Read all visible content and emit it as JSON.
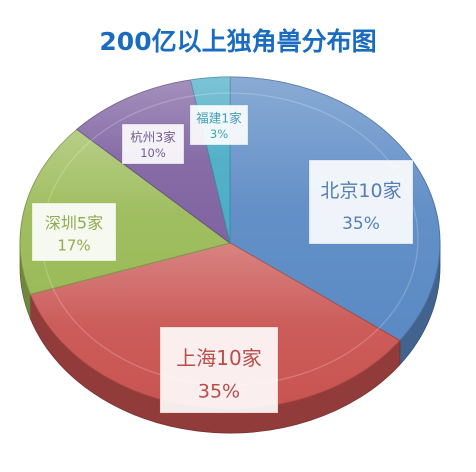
{
  "chart_data": {
    "type": "pie",
    "title": "200亿以上独角兽分布图",
    "slices": [
      {
        "name": "北京10家",
        "value": 35,
        "percent_label": "35%",
        "color": "#5b8ac4"
      },
      {
        "name": "上海10家",
        "value": 35,
        "percent_label": "35%",
        "color": "#c95451"
      },
      {
        "name": "深圳5家",
        "value": 17,
        "percent_label": "17%",
        "color": "#9bbb59"
      },
      {
        "name": "杭州3家",
        "value": 10,
        "percent_label": "10%",
        "color": "#8064a2"
      },
      {
        "name": "福建1家",
        "value": 3,
        "percent_label": "3%",
        "color": "#4bacc6"
      }
    ]
  }
}
